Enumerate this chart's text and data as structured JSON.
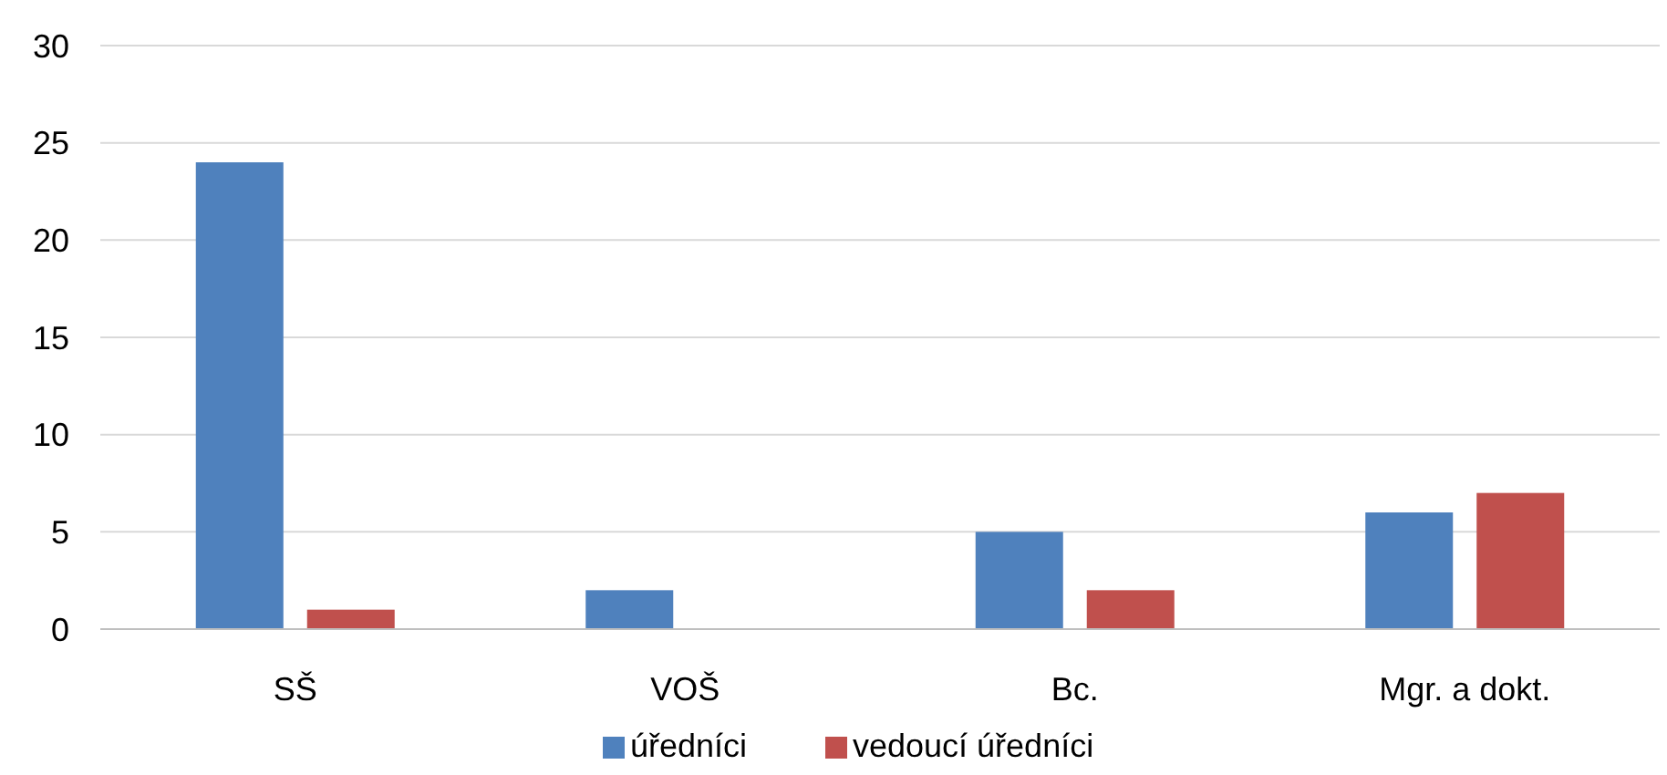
{
  "chart_data": {
    "type": "bar",
    "categories": [
      "SŠ",
      "VOŠ",
      "Bc.",
      "Mgr. a dokt."
    ],
    "series": [
      {
        "name": "úředníci",
        "color": "#4f81bd",
        "values": [
          24,
          2,
          5,
          6
        ]
      },
      {
        "name": "vedoucí úředníci",
        "color": "#c0504d",
        "values": [
          1,
          0,
          2,
          7
        ]
      }
    ],
    "ylim": [
      0,
      30
    ],
    "yticks": [
      0,
      5,
      10,
      15,
      20,
      25,
      30
    ],
    "grid": "y",
    "legend": "bottom"
  }
}
